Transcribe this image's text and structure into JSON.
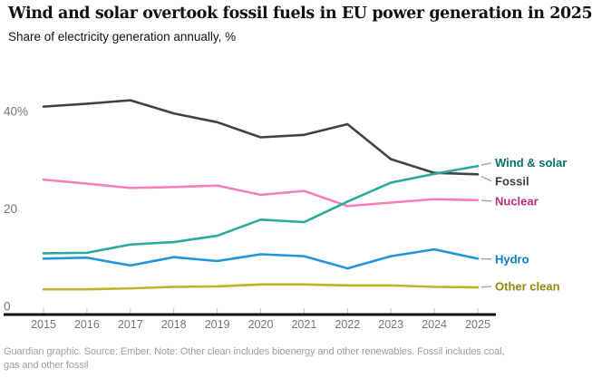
{
  "header": {
    "title": "Wind and solar overtook fossil fuels in EU power generation in 2025",
    "subtitle": "Share of electricity generation annually, %"
  },
  "chart_data": {
    "type": "line",
    "x": [
      2015,
      2016,
      2017,
      2018,
      2019,
      2020,
      2021,
      2022,
      2023,
      2024,
      2025
    ],
    "series": [
      {
        "name": "Wind & solar",
        "color": "#2aab9a",
        "label_color": "#077368",
        "values": [
          10.9,
          11.0,
          12.7,
          13.2,
          14.5,
          17.8,
          17.3,
          21.5,
          25.4,
          27.2,
          28.8
        ]
      },
      {
        "name": "Fossil",
        "color": "#424242",
        "label_color": "#3b3b3b",
        "values": [
          41.0,
          41.6,
          42.3,
          39.6,
          37.8,
          34.7,
          35.2,
          37.4,
          30.2,
          27.4,
          27.1
        ]
      },
      {
        "name": "Nuclear",
        "color": "#f77fb8",
        "label_color": "#bb2f7d",
        "values": [
          26.0,
          25.2,
          24.3,
          24.5,
          24.8,
          22.9,
          23.7,
          20.6,
          21.3,
          22.0,
          21.8
        ]
      },
      {
        "name": "Hydro",
        "color": "#1e95dc",
        "label_color": "#0a7cc2",
        "values": [
          9.8,
          10.0,
          8.4,
          10.1,
          9.3,
          10.7,
          10.3,
          7.8,
          10.3,
          11.7,
          9.8
        ]
      },
      {
        "name": "Other clean",
        "color": "#c2b12a",
        "label_color": "#91870b",
        "values": [
          3.5,
          3.5,
          3.7,
          4.0,
          4.1,
          4.5,
          4.5,
          4.3,
          4.3,
          4.0,
          3.9
        ]
      }
    ],
    "yticks": [
      {
        "label": "40%",
        "value": 40
      },
      {
        "label": "20",
        "value": 20
      },
      {
        "label": "0",
        "value": 0
      }
    ],
    "ylim": [
      0,
      45
    ],
    "xlabel": "",
    "ylabel": "Share of electricity generation annually, %",
    "grid": false,
    "legend_position": "right"
  },
  "footer": {
    "lines": [
      "Guardian graphic. Source: Ember. Note: Other clean includes bioenergy and other renewables. Fossil includes coal,",
      "gas and other fossil"
    ]
  }
}
